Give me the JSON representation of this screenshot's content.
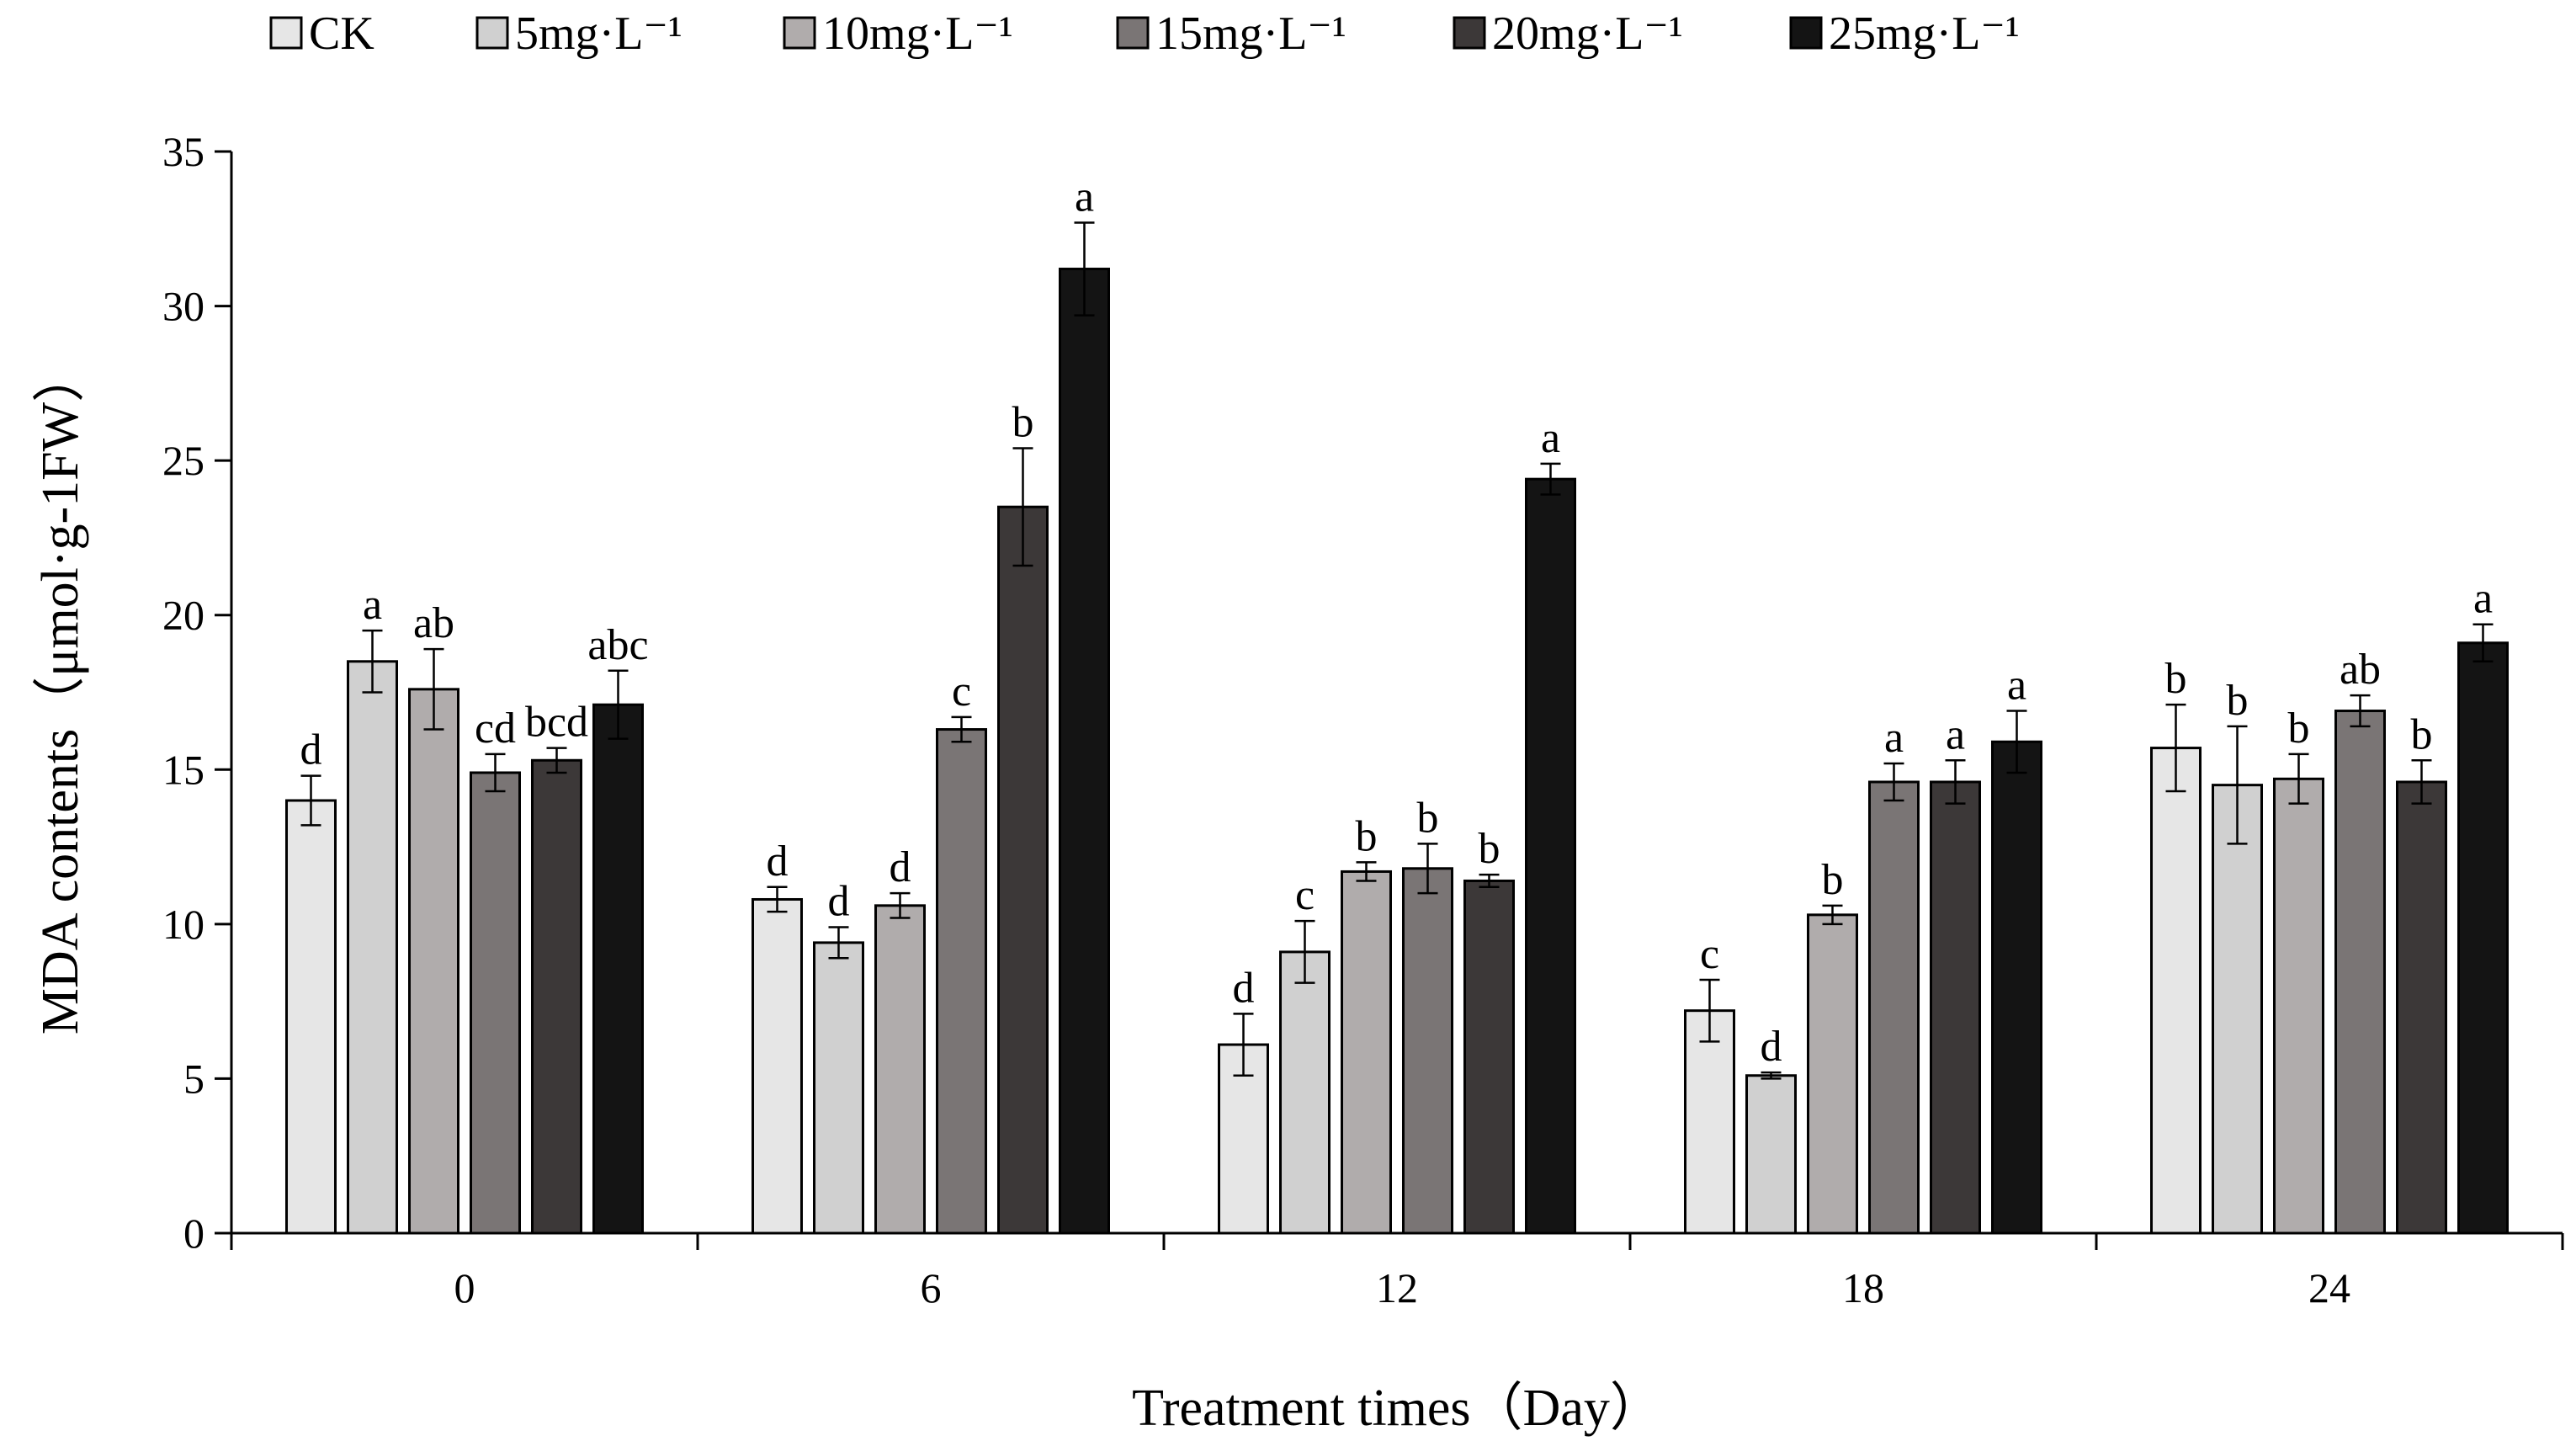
{
  "chart_data": {
    "type": "bar",
    "title": "",
    "xlabel": "Treatment times（Day）",
    "ylabel": "MDA contents（μmol·g-1FW）",
    "ylim": [
      0,
      35
    ],
    "yticks": [
      0,
      5,
      10,
      15,
      20,
      25,
      30,
      35
    ],
    "categories": [
      "0",
      "6",
      "12",
      "18",
      "24"
    ],
    "legend_position": "top",
    "series": [
      {
        "name": "CK",
        "color": "#e6e6e6",
        "values": [
          14.0,
          10.8,
          6.1,
          7.2,
          15.7
        ],
        "errors": [
          0.8,
          0.4,
          1.0,
          1.0,
          1.4
        ],
        "labels": [
          "d",
          "d",
          "d",
          "c",
          "b"
        ]
      },
      {
        "name": "5mg·L⁻¹",
        "color": "#d0d0d0",
        "values": [
          18.5,
          9.4,
          9.1,
          5.1,
          14.5
        ],
        "errors": [
          1.0,
          0.5,
          1.0,
          0.1,
          1.9
        ],
        "labels": [
          "a",
          "d",
          "c",
          "d",
          "b"
        ]
      },
      {
        "name": "10mg·L⁻¹",
        "color": "#b0acac",
        "values": [
          17.6,
          10.6,
          11.7,
          10.3,
          14.7
        ],
        "errors": [
          1.3,
          0.4,
          0.3,
          0.3,
          0.8
        ],
        "labels": [
          "ab",
          "d",
          "b",
          "b",
          "b"
        ]
      },
      {
        "name": "15mg·L⁻¹",
        "color": "#7a7575",
        "values": [
          14.9,
          16.3,
          11.8,
          14.6,
          16.9
        ],
        "errors": [
          0.6,
          0.4,
          0.8,
          0.6,
          0.5
        ],
        "labels": [
          "cd",
          "c",
          "b",
          "a",
          "ab"
        ]
      },
      {
        "name": "20mg·L⁻¹",
        "color": "#3c3838",
        "values": [
          15.3,
          23.5,
          11.4,
          14.6,
          14.6
        ],
        "errors": [
          0.4,
          1.9,
          0.2,
          0.7,
          0.7
        ],
        "labels": [
          "bcd",
          "b",
          "b",
          "a",
          "b"
        ]
      },
      {
        "name": "25mg·L⁻¹",
        "color": "#141414",
        "values": [
          17.1,
          31.2,
          24.4,
          15.9,
          19.1
        ],
        "errors": [
          1.1,
          1.5,
          0.5,
          1.0,
          0.6
        ],
        "labels": [
          "abc",
          "a",
          "a",
          "a",
          "a"
        ]
      }
    ]
  }
}
